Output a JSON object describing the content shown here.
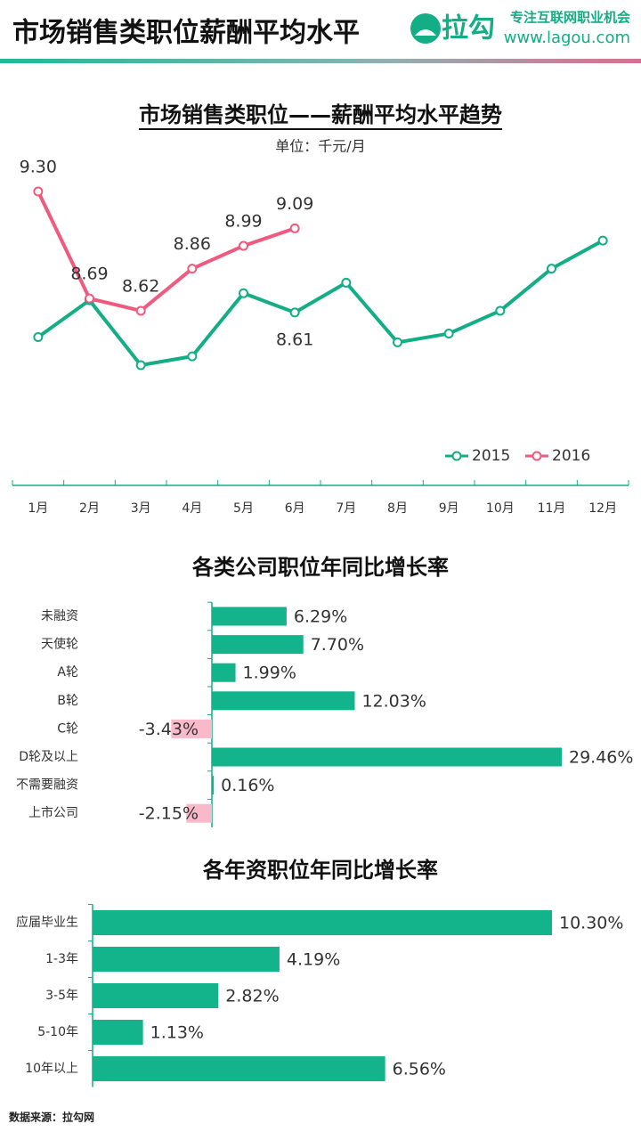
{
  "header": {
    "title": "市场销售类职位薪酬平均水平",
    "logo": "拉勾",
    "slogan": "专注互联网职业机会",
    "url": "www.lagou.com"
  },
  "chart_data": [
    {
      "type": "line",
      "title": "市场销售类职位——薪酬平均水平趋势",
      "subtitle": "单位：千元/月",
      "categories": [
        "1月",
        "2月",
        "3月",
        "4月",
        "5月",
        "6月",
        "7月",
        "8月",
        "9月",
        "10月",
        "11月",
        "12月"
      ],
      "series": [
        {
          "name": "2015",
          "color": "#13ad86",
          "values": [
            8.47,
            8.68,
            8.31,
            8.36,
            8.72,
            8.61,
            8.78,
            8.44,
            8.49,
            8.62,
            8.86,
            9.02
          ],
          "value_labels": [
            null,
            null,
            null,
            null,
            null,
            "8.61",
            null,
            null,
            null,
            null,
            null,
            null
          ]
        },
        {
          "name": "2016",
          "color": "#ef5a7e",
          "values": [
            9.3,
            8.69,
            8.62,
            8.86,
            8.99,
            9.09,
            null,
            null,
            null,
            null,
            null,
            null
          ],
          "value_labels": [
            "9.30",
            "8.69",
            "8.62",
            "8.86",
            "8.99",
            "9.09",
            null,
            null,
            null,
            null,
            null,
            null
          ]
        }
      ],
      "legend": "lower right"
    },
    {
      "type": "hbar",
      "title": "各类公司职位年同比增长率",
      "categories": [
        "未融资",
        "天使轮",
        "A轮",
        "B轮",
        "C轮",
        "D轮及以上",
        "不需要融资",
        "上市公司"
      ],
      "values": [
        6.29,
        7.7,
        1.99,
        12.03,
        -3.43,
        29.46,
        0.16,
        -2.15
      ],
      "value_labels": [
        "6.29%",
        "7.70%",
        "1.99%",
        "12.03%",
        "-3.43%",
        "29.46%",
        "0.16%",
        "-2.15%"
      ],
      "color": "#13b38c",
      "negative_color": "#f9b9ca"
    },
    {
      "type": "hbar",
      "title": "各年资职位年同比增长率",
      "categories": [
        "应届毕业生",
        "1-3年",
        "3-5年",
        "5-10年",
        "10年以上"
      ],
      "values": [
        10.3,
        4.19,
        2.82,
        1.13,
        6.56
      ],
      "value_labels": [
        "10.30%",
        "4.19%",
        "2.82%",
        "1.13%",
        "6.56%"
      ],
      "color": "#13b38c",
      "negative_color": "#f9b9ca"
    }
  ],
  "footer": "数据来源：拉勾网"
}
